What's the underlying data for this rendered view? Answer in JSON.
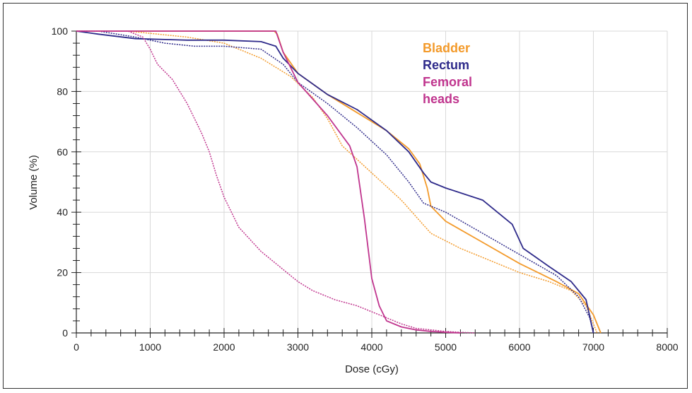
{
  "chart_data": {
    "type": "line",
    "title": "",
    "xlabel": "Dose (cGy)",
    "ylabel": "Volume (%)",
    "xlim": [
      0,
      8000
    ],
    "ylim": [
      0,
      100
    ],
    "x_ticks": [
      0,
      1000,
      2000,
      3000,
      4000,
      5000,
      6000,
      7000,
      8000
    ],
    "y_ticks": [
      0,
      20,
      40,
      60,
      80,
      100
    ],
    "grid": true,
    "legend_position": "top-center",
    "legend": [
      {
        "label": "Bladder",
        "color": "#F39A2A"
      },
      {
        "label": "Rectum",
        "color": "#2E2A8A"
      },
      {
        "label": "Femoral heads",
        "color": "#C0358E"
      }
    ],
    "series": [
      {
        "name": "Bladder",
        "style": "solid",
        "color": "#F39A2A",
        "x": [
          0,
          2680,
          2720,
          2800,
          3000,
          3400,
          3800,
          4200,
          4500,
          4650,
          4750,
          4800,
          5000,
          5500,
          6000,
          6500,
          6800,
          7000,
          7100
        ],
        "y": [
          100,
          100,
          99,
          93,
          86,
          79,
          73,
          67,
          61,
          56,
          48,
          42,
          37,
          30,
          23,
          17,
          13,
          6,
          0
        ]
      },
      {
        "name": "Bladder",
        "style": "dotted",
        "color": "#F39A2A",
        "x": [
          0,
          700,
          1500,
          2000,
          2500,
          2900,
          3200,
          3400,
          3600,
          4000,
          4400,
          4800,
          5200,
          5600,
          6000,
          6400,
          6700,
          6900,
          7000,
          7050
        ],
        "y": [
          100,
          100,
          98,
          96,
          91,
          85,
          78,
          71,
          62,
          53,
          44,
          33,
          28,
          24,
          20,
          17,
          14,
          9,
          3,
          0
        ]
      },
      {
        "name": "Rectum",
        "style": "solid",
        "color": "#2E2A8A",
        "x": [
          0,
          300,
          800,
          1500,
          2000,
          2500,
          2700,
          2800,
          3000,
          3400,
          3800,
          4200,
          4500,
          4700,
          4800,
          5000,
          5500,
          5900,
          6050,
          6400,
          6700,
          6900,
          7000
        ],
        "y": [
          100,
          99,
          97.5,
          97,
          97,
          96.5,
          95,
          91,
          86,
          79,
          74,
          67,
          60,
          53,
          50,
          48,
          44,
          36,
          28,
          22,
          17,
          11,
          0
        ]
      },
      {
        "name": "Rectum",
        "style": "dotted",
        "color": "#2E2A8A",
        "x": [
          0,
          300,
          800,
          1200,
          1600,
          2000,
          2500,
          2800,
          3000,
          3400,
          3800,
          4200,
          4500,
          4700,
          5000,
          5500,
          6000,
          6500,
          6800,
          6950,
          7000
        ],
        "y": [
          100,
          100,
          98,
          96,
          95,
          95,
          94,
          89,
          83,
          76,
          68,
          59,
          50,
          43,
          40,
          33,
          26,
          19,
          12,
          5,
          0
        ]
      },
      {
        "name": "Femoral heads",
        "style": "solid",
        "color": "#C0358E",
        "x": [
          0,
          2700,
          2800,
          3000,
          3400,
          3700,
          3800,
          3900,
          4000,
          4100,
          4200,
          4400,
          4600,
          4800,
          5000,
          5200
        ],
        "y": [
          100,
          100,
          93,
          83,
          72,
          62,
          55,
          38,
          18,
          9,
          4,
          2,
          1,
          0.5,
          0.2,
          0
        ]
      },
      {
        "name": "Femoral heads",
        "style": "dotted",
        "color": "#C0358E",
        "x": [
          0,
          700,
          900,
          1000,
          1100,
          1300,
          1500,
          1700,
          1800,
          1900,
          2000,
          2200,
          2500,
          2800,
          3000,
          3200,
          3500,
          3800,
          4000,
          4200,
          4400,
          4600,
          4800,
          5000,
          5200,
          5400
        ],
        "y": [
          100,
          100,
          98,
          94,
          89,
          84,
          76,
          66,
          60,
          52,
          45,
          35,
          27,
          21,
          17,
          14,
          11,
          9,
          7,
          5,
          3,
          1.5,
          1,
          0.5,
          0.2,
          0
        ]
      }
    ]
  }
}
